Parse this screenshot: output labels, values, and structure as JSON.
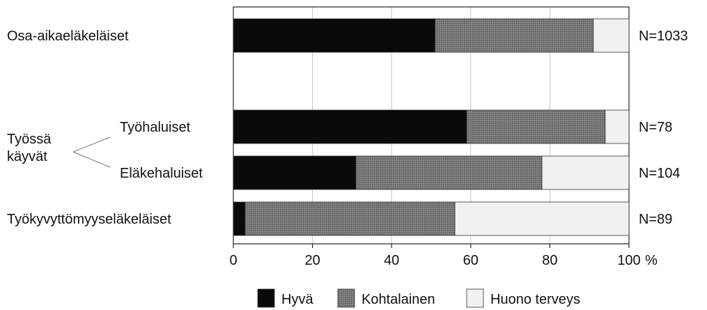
{
  "chart_data": {
    "type": "bar",
    "stacked": true,
    "orientation": "horizontal",
    "categories": [
      "Osa-aikaeläkeläiset",
      "Työhaluiset",
      "Eläkehaluiset",
      "Työkyvyttömyyseläkeläiset"
    ],
    "group_label_line1": "Työssä",
    "group_label_line2": "käyvät",
    "n_labels": [
      "N=1033",
      "N=78",
      "N=104",
      "N=89"
    ],
    "series": [
      {
        "name": "Hyvä",
        "color": "#0a0a0a",
        "values": [
          51,
          59,
          31,
          3
        ]
      },
      {
        "name": "Kohtalainen",
        "color": "#6e6e6e",
        "values": [
          40,
          35,
          47,
          53
        ]
      },
      {
        "name": "Huono terveys",
        "color": "#f1f1f1",
        "values": [
          9,
          6,
          22,
          44
        ]
      }
    ],
    "xticks": [
      "0",
      "20",
      "40",
      "60",
      "80",
      "100"
    ],
    "xlim": [
      0,
      100
    ],
    "xunit": "%",
    "grid": true,
    "legend_position": "bottom"
  }
}
